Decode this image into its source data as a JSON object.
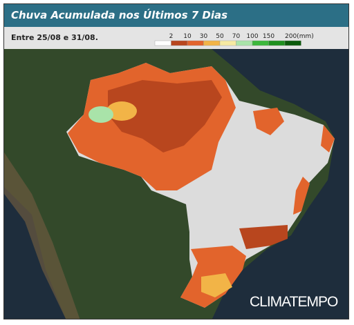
{
  "header": {
    "title": "Chuva Acumulada nos Últimos 7 Dias",
    "period": "Entre 25/08 e 31/08."
  },
  "legend": {
    "labels": [
      "2",
      "10",
      "30",
      "50",
      "70",
      "100",
      "150",
      "200(mm)"
    ],
    "colors": [
      "#ffffff",
      "#b8461e",
      "#e2642c",
      "#f2b447",
      "#f6e9a2",
      "#a9e3a9",
      "#3cb83c",
      "#1f901f",
      "#0b5a0b"
    ]
  },
  "brand": "CLIMATEMPO"
}
